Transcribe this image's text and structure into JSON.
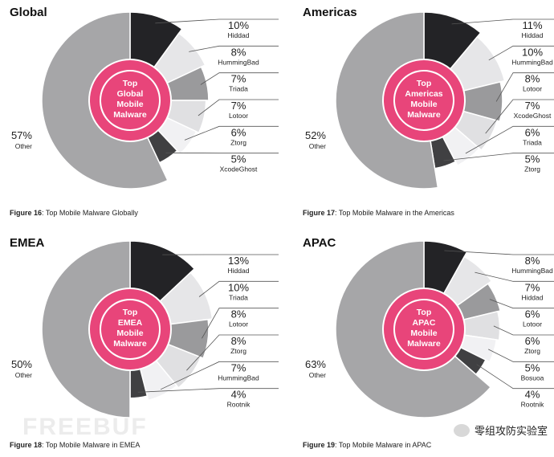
{
  "colors": {
    "ring": "#e8457a",
    "other": "#a6a6a8",
    "slice_palette": [
      "#232326",
      "#e6e6e8",
      "#9a9a9c",
      "#e0e0e2",
      "#f1f1f3",
      "#404042"
    ],
    "leader": "#555555"
  },
  "watermark": {
    "left_text": "FREEBUF",
    "wechat_text": "零组攻防实验室",
    "wechat_icon": "wechat-icon"
  },
  "chart_data": [
    {
      "type": "pie",
      "region": "Global",
      "center": [
        "Top",
        "Global",
        "Mobile",
        "Malware"
      ],
      "caption_bold": "Figure 16",
      "caption_text": ": Top Mobile Malware Globally",
      "slices": [
        {
          "label": "Hiddad",
          "value": 10,
          "pct": "10%"
        },
        {
          "label": "HummingBad",
          "value": 8,
          "pct": "8%"
        },
        {
          "label": "Triada",
          "value": 7,
          "pct": "7%"
        },
        {
          "label": "Lotoor",
          "value": 7,
          "pct": "7%"
        },
        {
          "label": "Ztorg",
          "value": 6,
          "pct": "6%"
        },
        {
          "label": "XcodeGhost",
          "value": 5,
          "pct": "5%"
        },
        {
          "label": "Other",
          "value": 57,
          "pct": "57%"
        }
      ]
    },
    {
      "type": "pie",
      "region": "Americas",
      "center": [
        "Top",
        "Americas",
        "Mobile",
        "Malware"
      ],
      "caption_bold": "Figure 17",
      "caption_text": ": Top Mobile Malware in the Americas",
      "slices": [
        {
          "label": "Hiddad",
          "value": 11,
          "pct": "11%"
        },
        {
          "label": "HummingBad",
          "value": 10,
          "pct": "10%"
        },
        {
          "label": "Lotoor",
          "value": 8,
          "pct": "8%"
        },
        {
          "label": "XcodeGhost",
          "value": 7,
          "pct": "7%"
        },
        {
          "label": "Triada",
          "value": 6,
          "pct": "6%"
        },
        {
          "label": "Ztorg",
          "value": 5,
          "pct": "5%"
        },
        {
          "label": "Other",
          "value": 52,
          "pct": "52%"
        }
      ]
    },
    {
      "type": "pie",
      "region": "EMEA",
      "center": [
        "Top",
        "EMEA",
        "Mobile",
        "Malware"
      ],
      "caption_bold": "Figure 18",
      "caption_text": ": Top Mobile Malware in EMEA",
      "slices": [
        {
          "label": "Hiddad",
          "value": 13,
          "pct": "13%"
        },
        {
          "label": "Triada",
          "value": 10,
          "pct": "10%"
        },
        {
          "label": "Lotoor",
          "value": 8,
          "pct": "8%"
        },
        {
          "label": "Ztorg",
          "value": 8,
          "pct": "8%"
        },
        {
          "label": "HummingBad",
          "value": 7,
          "pct": "7%"
        },
        {
          "label": "Rootnik",
          "value": 4,
          "pct": "4%"
        },
        {
          "label": "Other",
          "value": 50,
          "pct": "50%"
        }
      ]
    },
    {
      "type": "pie",
      "region": "APAC",
      "center": [
        "Top",
        "APAC",
        "Mobile",
        "Malware"
      ],
      "caption_bold": "Figure 19",
      "caption_text": ": Top Mobile Malware in APAC",
      "slices": [
        {
          "label": "HummingBad",
          "value": 8,
          "pct": "8%"
        },
        {
          "label": "Hiddad",
          "value": 7,
          "pct": "7%"
        },
        {
          "label": "Lotoor",
          "value": 6,
          "pct": "6%"
        },
        {
          "label": "Ztorg",
          "value": 6,
          "pct": "6%"
        },
        {
          "label": "Bosuoa",
          "value": 5,
          "pct": "5%"
        },
        {
          "label": "Rootnik",
          "value": 4,
          "pct": "4%"
        },
        {
          "label": "Other",
          "value": 63,
          "pct": "63%"
        }
      ]
    }
  ]
}
